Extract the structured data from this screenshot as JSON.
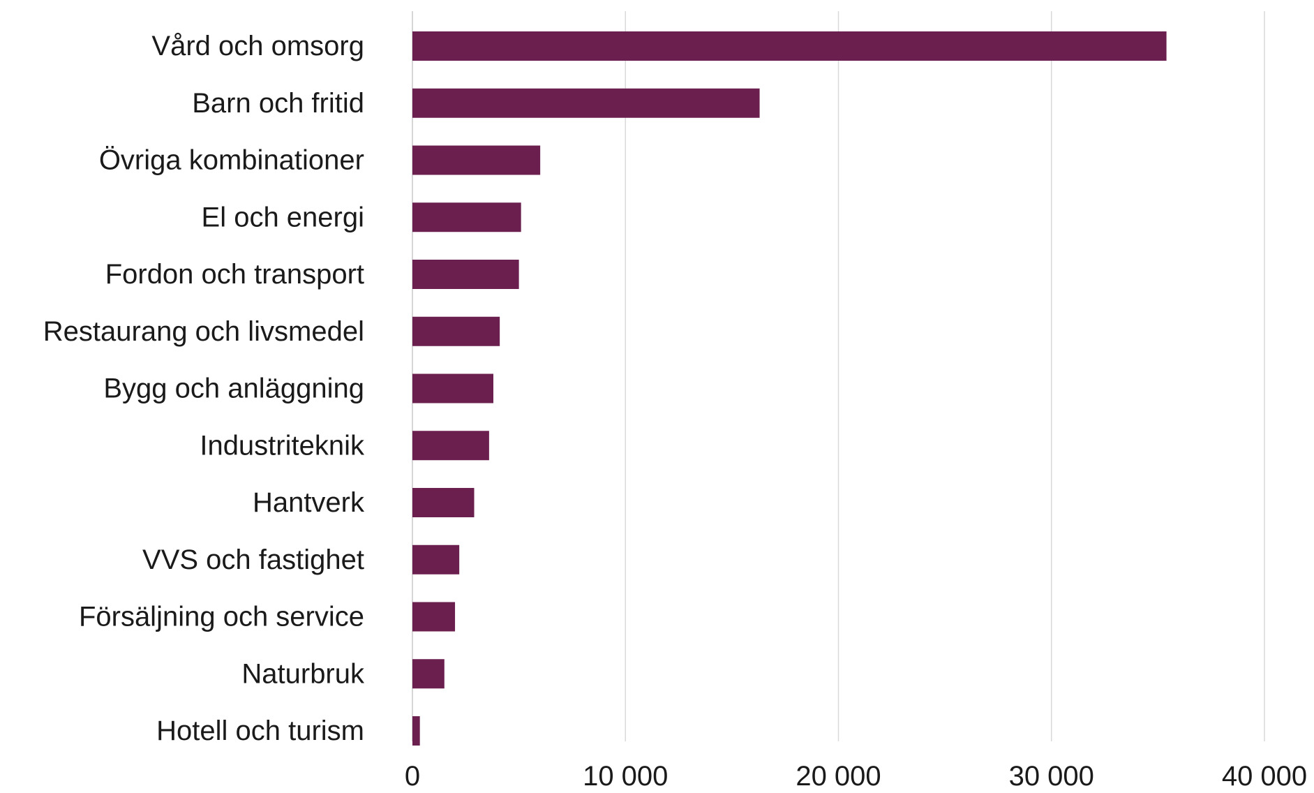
{
  "chart_data": {
    "type": "bar",
    "orientation": "horizontal",
    "categories": [
      "Vård och omsorg",
      "Barn och fritid",
      "Övriga kombinationer",
      "El och energi",
      "Fordon och transport",
      "Restaurang och livsmedel",
      "Bygg och anläggning",
      "Industriteknik",
      "Hantverk",
      "VVS och fastighet",
      "Försäljning och service",
      "Naturbruk",
      "Hotell och turism"
    ],
    "values": [
      35400,
      16300,
      6000,
      5100,
      5000,
      4100,
      3800,
      3600,
      2900,
      2200,
      2000,
      1500,
      350
    ],
    "title": "",
    "xlabel": "",
    "ylabel": "",
    "xlim": [
      0,
      40000
    ],
    "ticks": [
      0,
      10000,
      20000,
      30000,
      40000
    ],
    "tick_labels": [
      "0",
      "10 000",
      "20 000",
      "30 000",
      "40 000"
    ],
    "grid": "vertical",
    "legend": "none",
    "colors": {
      "bar": "#6b1f4e",
      "grid": "#d9d9d9"
    }
  }
}
